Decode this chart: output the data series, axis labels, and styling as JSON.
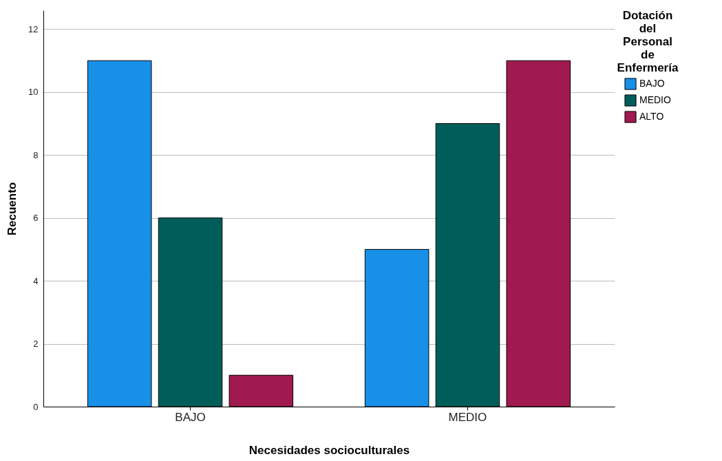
{
  "chart_data": {
    "type": "bar",
    "xlabel": "Necesidades socioculturales",
    "ylabel": "Recuento",
    "legend_title": "Dotación del Personal de Enfermería",
    "categories": [
      "BAJO",
      "MEDIO"
    ],
    "series": [
      {
        "name": "BAJO",
        "color": "#1790e8",
        "values": [
          11,
          5
        ]
      },
      {
        "name": "MEDIO",
        "color": "#005e5a",
        "values": [
          6,
          9
        ]
      },
      {
        "name": "ALTO",
        "color": "#a0194f",
        "values": [
          1,
          11
        ]
      }
    ],
    "ylim": [
      0,
      12.6
    ],
    "yticks": [
      0,
      2,
      4,
      6,
      8,
      10,
      12
    ],
    "grid": "y",
    "legend": "top right"
  }
}
